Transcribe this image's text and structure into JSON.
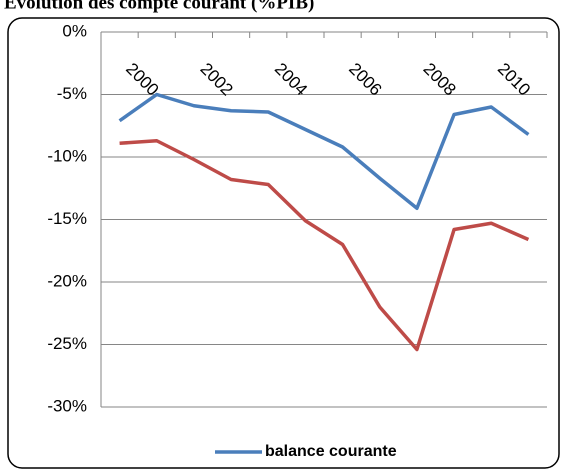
{
  "chart_data": {
    "type": "line",
    "title": "Evolution des compte courant (%PIB)",
    "categories": [
      "2000",
      null,
      "2002",
      null,
      "2004",
      null,
      "2006",
      null,
      "2008",
      null,
      "2010",
      null
    ],
    "series": [
      {
        "name": "balance courante",
        "color": "#4a7ebb",
        "values": [
          -7.1,
          -5.0,
          -5.9,
          -6.3,
          -6.4,
          -7.8,
          -9.2,
          -11.7,
          -14.1,
          -6.6,
          -6.0,
          -8.2
        ]
      },
      {
        "color": "#be4b48",
        "values": [
          -8.9,
          -8.7,
          -10.2,
          -11.8,
          -12.2,
          -15.1,
          -17.0,
          -22.0,
          -25.4,
          -15.8,
          -15.3,
          -16.6
        ]
      }
    ],
    "ylim": [
      -30,
      0
    ],
    "yticks": [
      {
        "value": 0,
        "label": "0%"
      },
      {
        "value": -5,
        "label": "-5%"
      },
      {
        "value": -10,
        "label": "-10%"
      },
      {
        "value": -15,
        "label": "-15%"
      },
      {
        "value": -20,
        "label": "-20%"
      },
      {
        "value": -25,
        "label": "-25%"
      },
      {
        "value": -30,
        "label": "-30%"
      }
    ],
    "grid": true,
    "legend": "bottom"
  }
}
